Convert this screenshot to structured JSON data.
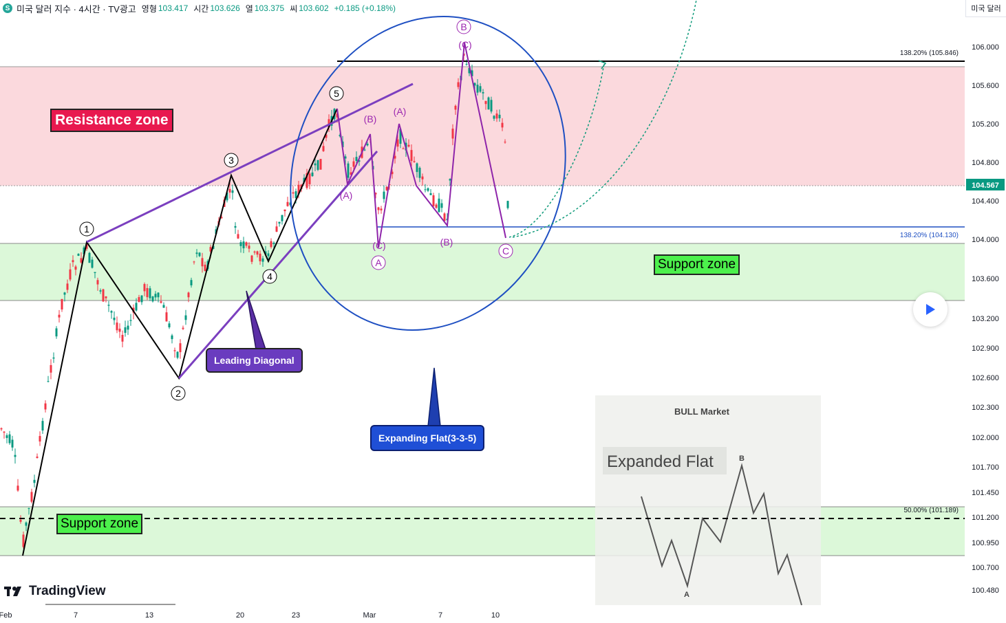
{
  "header": {
    "title": "미국 달러 지수 · 4시간 · TV광고",
    "open_label": "영형",
    "open_value": "103.417",
    "high_label": "시간",
    "high_value": "103.626",
    "low_label": "열",
    "low_value": "103.375",
    "close_label": "씨",
    "close_value": "103.602",
    "change": "+0.185 (+0.18%)"
  },
  "corner_label": "미국 달러",
  "logo_text": "TradingView",
  "labels": {
    "resistance": "Resistance zone",
    "support_top": "Support zone",
    "support_bottom": "Support zone",
    "leading_diagonal": "Leading Diagonal",
    "expanding_flat": "Expanding Flat(3-3-5)",
    "inset_title": "BULL Market",
    "inset_subtitle": "Expanded Flat",
    "inset_a": "A",
    "inset_b": "B"
  },
  "wave_labels": {
    "w1": "1",
    "w2": "2",
    "w3": "3",
    "w4": "4",
    "w5": "5",
    "pA1": "(A)",
    "pB1": "(B)",
    "pC1": "(C)",
    "pA2": "(A)",
    "pB2": "(B)",
    "pC2": "(C)",
    "cA": "A",
    "cB": "B",
    "cC": "C"
  },
  "fib": {
    "upper": "138.20% (105.846)",
    "lower": "138.20% (104.130)",
    "mid": "50.00% (101.189)"
  },
  "colors": {
    "up": "#089981",
    "down": "#f23645",
    "resistance_fill": "#f8cdd3",
    "support_fill": "#d9f7d6",
    "purple": "#7b3fbf",
    "blue": "#1e4fc2",
    "magenta": "#9c27b0"
  },
  "chart_data": {
    "type": "candlestick",
    "price_axis": {
      "ticks": [
        "106.000",
        "105.600",
        "105.200",
        "104.800",
        "104.400",
        "104.000",
        "103.600",
        "103.200",
        "102.900",
        "102.600",
        "102.300",
        "102.000",
        "101.700",
        "101.450",
        "101.200",
        "100.950",
        "100.700",
        "100.480"
      ],
      "current_price": "104.567"
    },
    "time_axis": [
      "Feb",
      "7",
      "13",
      "20",
      "23",
      "Mar",
      "7",
      "10"
    ],
    "zones": [
      {
        "name": "Resistance zone",
        "from": 104.57,
        "to": 105.78
      },
      {
        "name": "Support zone",
        "from": 103.38,
        "to": 103.97
      },
      {
        "name": "Support zone",
        "from": 100.78,
        "to": 101.28
      }
    ],
    "fib_levels": [
      {
        "label": "138.20%",
        "value": 105.846
      },
      {
        "label": "138.20%",
        "value": 104.13
      },
      {
        "label": "50.00%",
        "value": 101.189
      }
    ]
  }
}
